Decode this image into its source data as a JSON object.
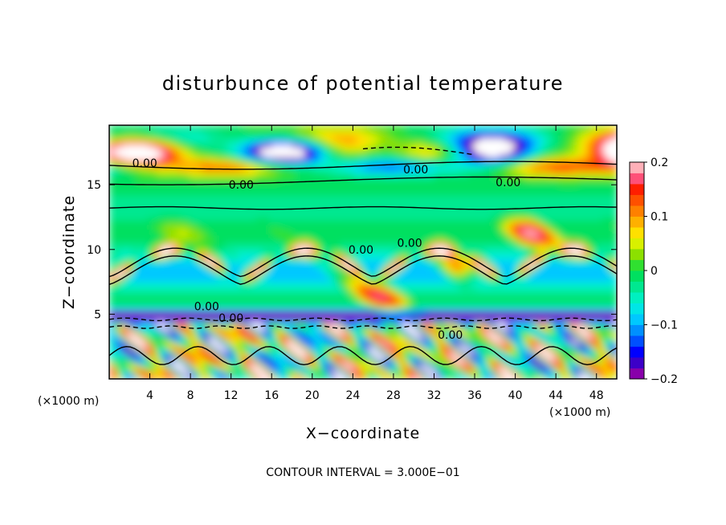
{
  "chart_data": {
    "type": "heatmap",
    "title": "disturbunce of potential temperature",
    "xlabel": "X−coordinate",
    "ylabel": "Z−coordinate",
    "x_unit_left": "(×1000 m)",
    "x_unit_right": "(×1000 m)",
    "x_ticks": [
      4,
      8,
      12,
      16,
      20,
      24,
      28,
      32,
      36,
      40,
      44,
      48
    ],
    "y_ticks": [
      5,
      10,
      15
    ],
    "xlim": [
      0,
      50
    ],
    "ylim": [
      0,
      19.6
    ],
    "colorbar": {
      "ticks": [
        "0.2",
        "0.1",
        "0",
        "−0.1",
        "−0.2"
      ],
      "tick_values": [
        0.2,
        0.1,
        0,
        -0.1,
        -0.2
      ],
      "range": [
        -0.2,
        0.2
      ],
      "colors": [
        "#8800aa",
        "#3c00c8",
        "#0000ff",
        "#0050ff",
        "#0090ff",
        "#00c8ff",
        "#00e6e6",
        "#00f0c0",
        "#00e890",
        "#00e060",
        "#30e030",
        "#8ce000",
        "#d8f000",
        "#ffe000",
        "#ffb000",
        "#ff8000",
        "#ff5000",
        "#ff1e00",
        "#ff5078",
        "#ffb0b8"
      ]
    },
    "contour_labels": [
      {
        "text": "0.00",
        "x": 3.5,
        "z": 16.7
      },
      {
        "text": "0.00",
        "x": 13.0,
        "z": 15.0
      },
      {
        "text": "0.00",
        "x": 30.2,
        "z": 16.2
      },
      {
        "text": "0.00",
        "x": 39.3,
        "z": 15.2
      },
      {
        "text": "0.00",
        "x": 24.8,
        "z": 10.0
      },
      {
        "text": "0.00",
        "x": 29.6,
        "z": 10.5
      },
      {
        "text": "0.00",
        "x": 9.6,
        "z": 5.6
      },
      {
        "text": "0.00",
        "x": 33.6,
        "z": 3.4
      },
      {
        "text": "0.00",
        "x": 12.0,
        "z": 4.7
      }
    ],
    "footnote": "CONTOUR INTERVAL = 3.000E−01"
  }
}
